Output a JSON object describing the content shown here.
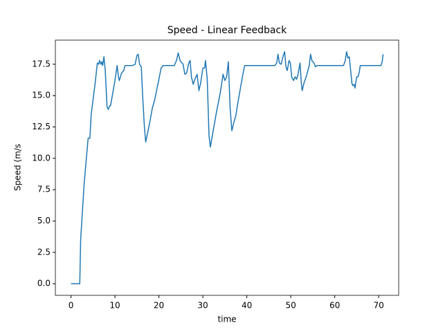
{
  "chart_data": {
    "type": "line",
    "title": "Speed - Linear Feedback",
    "xlabel": "time",
    "ylabel": "Speed (m/s",
    "x": [
      0,
      2,
      2.2,
      3,
      3.5,
      3.9,
      4.3,
      4.6,
      5.5,
      6,
      6.3,
      6.5,
      6.8,
      7.0,
      7.2,
      7.5,
      7.8,
      8.2,
      8.5,
      8.8,
      9.0,
      9.5,
      10,
      10.5,
      10.8,
      11,
      11.5,
      12,
      12.3,
      14,
      14.6,
      15,
      15.3,
      15.6,
      16,
      16.3,
      16.7,
      17,
      17.3,
      18,
      18.5,
      19,
      20,
      20.5,
      21,
      23.5,
      24,
      24.4,
      24.8,
      25.5,
      25.9,
      26.3,
      26.8,
      27.1,
      27.4,
      27.8,
      28.3,
      28.7,
      29.1,
      29.5,
      30,
      30.4,
      30.6,
      31,
      31.4,
      31.7,
      32,
      33,
      34,
      34.6,
      35,
      35.4,
      35.8,
      36.2,
      36.6,
      37,
      37.5,
      38,
      39,
      39.5,
      40,
      46.4,
      46.8,
      47.1,
      47.4,
      47.8,
      48.3,
      48.6,
      48.9,
      49.2,
      49.6,
      49.9,
      50.2,
      50.6,
      51,
      51.3,
      51.6,
      52.1,
      52.4,
      52.6,
      53,
      53.6,
      54.2,
      54.5,
      54.8,
      55.3,
      55.6,
      56,
      62,
      62.4,
      62.7,
      63,
      63.3,
      63.6,
      63.9,
      64.1,
      64.4,
      64.6,
      65,
      65.3,
      65.6,
      65.8,
      70.5,
      70.8,
      71
    ],
    "series": [
      {
        "color": "#1f77b4",
        "values": [
          0,
          0,
          3.5,
          8,
          10,
          11.6,
          11.6,
          13.5,
          16,
          17.6,
          17.5,
          17.8,
          17.5,
          17.7,
          17.4,
          18.1,
          17,
          14.1,
          13.9,
          14.2,
          14.2,
          15.2,
          16.2,
          17.4,
          16.5,
          16.2,
          16.8,
          17,
          17.4,
          17.4,
          17.5,
          18.2,
          18.3,
          17.5,
          17.3,
          15,
          12.5,
          11.3,
          11.8,
          13,
          14,
          14.6,
          16.3,
          17.2,
          17.4,
          17.4,
          17.8,
          18.4,
          17.8,
          17.5,
          16.7,
          16.8,
          17.6,
          17.8,
          16.5,
          15.9,
          16.4,
          16.7,
          15.4,
          16.0,
          17.2,
          17.2,
          17.8,
          16.3,
          11.8,
          10.9,
          11.5,
          13.5,
          15.3,
          16.7,
          16.2,
          16.5,
          17.7,
          14,
          12.2,
          12.8,
          13.4,
          14.5,
          16.5,
          17.4,
          17.4,
          17.4,
          17.6,
          18.3,
          17.6,
          17.5,
          18.2,
          18.5,
          17.3,
          17.0,
          17.8,
          17.6,
          16.5,
          16.2,
          16.5,
          16.3,
          16.6,
          17.6,
          16.0,
          15.4,
          16.0,
          16.6,
          17.4,
          18.3,
          17.8,
          17.6,
          17.3,
          17.4,
          17.4,
          17.8,
          18.5,
          18.0,
          18.1,
          17.1,
          16.0,
          15.8,
          15.9,
          15.6,
          16.5,
          16.5,
          16.9,
          17.4,
          17.4,
          17.7,
          18.3
        ]
      }
    ],
    "xlim": [
      -3.55,
      74.55
    ],
    "ylim": [
      -0.925,
      19.425
    ],
    "xticks": [
      0,
      10,
      20,
      30,
      40,
      50,
      60,
      70
    ],
    "yticks": [
      {
        "value": 0,
        "label": "0.0"
      },
      {
        "value": 2.5,
        "label": "2.5"
      },
      {
        "value": 5,
        "label": "5.0"
      },
      {
        "value": 7.5,
        "label": "7.5"
      },
      {
        "value": 10,
        "label": "10.0"
      },
      {
        "value": 12.5,
        "label": "12.5"
      },
      {
        "value": 15,
        "label": "15.0"
      },
      {
        "value": 17.5,
        "label": "17.5"
      }
    ]
  }
}
